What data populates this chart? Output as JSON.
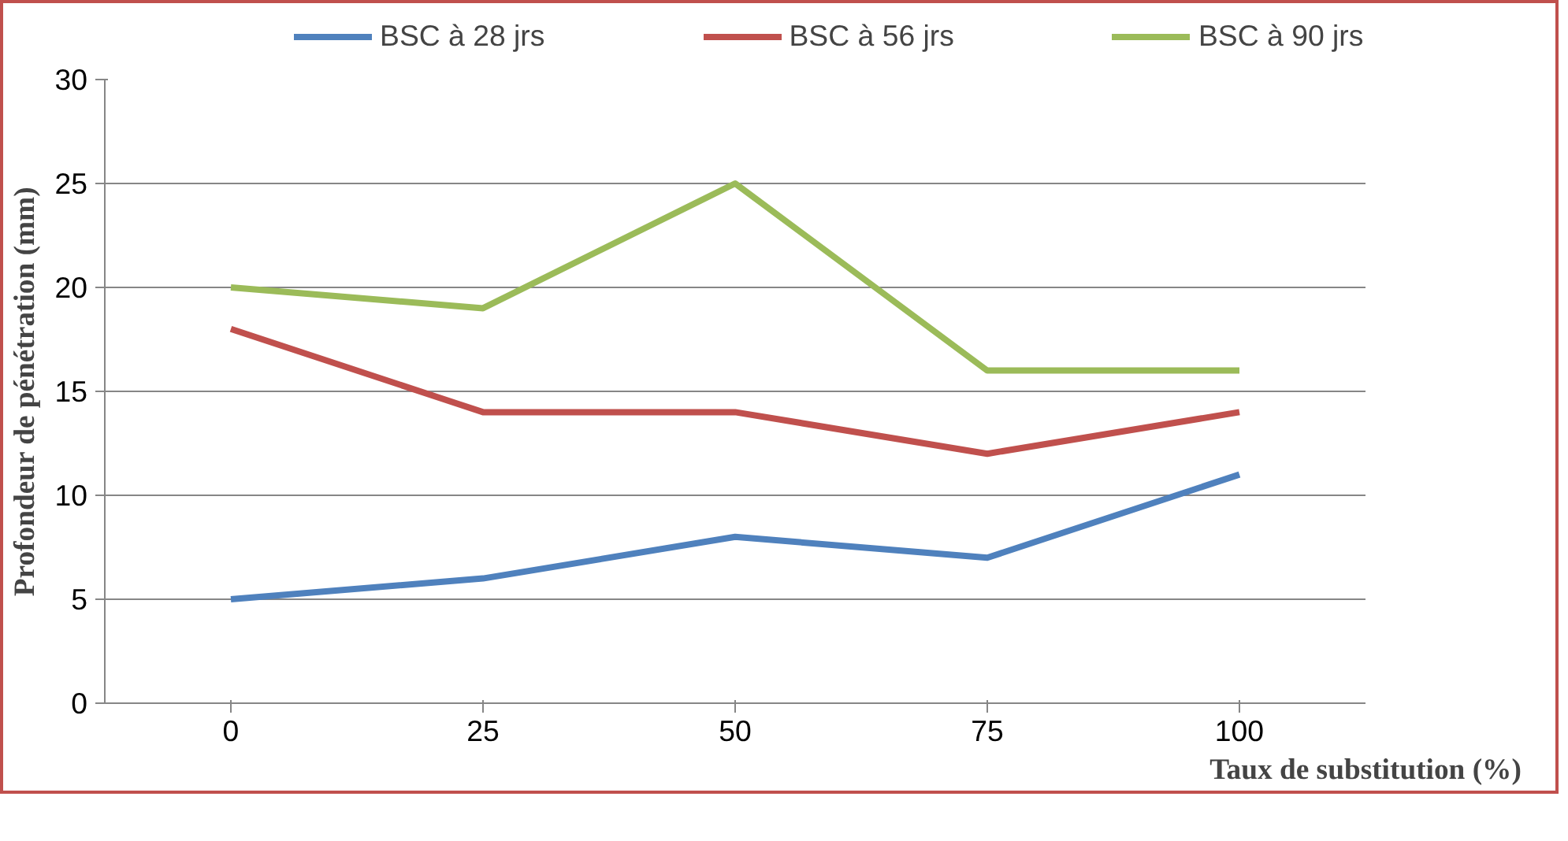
{
  "chart_data": {
    "type": "line",
    "xlabel": "Taux de substitution (%)",
    "ylabel": "Profondeur de pénétration (mm)",
    "categories": [
      "0",
      "25",
      "50",
      "75",
      "100"
    ],
    "series": [
      {
        "name": "BSC à 28 jrs",
        "color": "#4f81bd",
        "values": [
          5,
          6,
          8,
          7,
          11
        ]
      },
      {
        "name": "BSC à 56 jrs",
        "color": "#c0504d",
        "values": [
          18,
          14,
          14,
          12,
          14
        ]
      },
      {
        "name": "BSC à 90 jrs",
        "color": "#9bbb59",
        "values": [
          20,
          19,
          25,
          16,
          16
        ]
      }
    ],
    "ylim": [
      0,
      30
    ],
    "yticks": [
      0,
      5,
      10,
      15,
      20,
      25,
      30
    ],
    "grid": "y",
    "legend": "top",
    "marker": "none",
    "line_style": "solid"
  }
}
